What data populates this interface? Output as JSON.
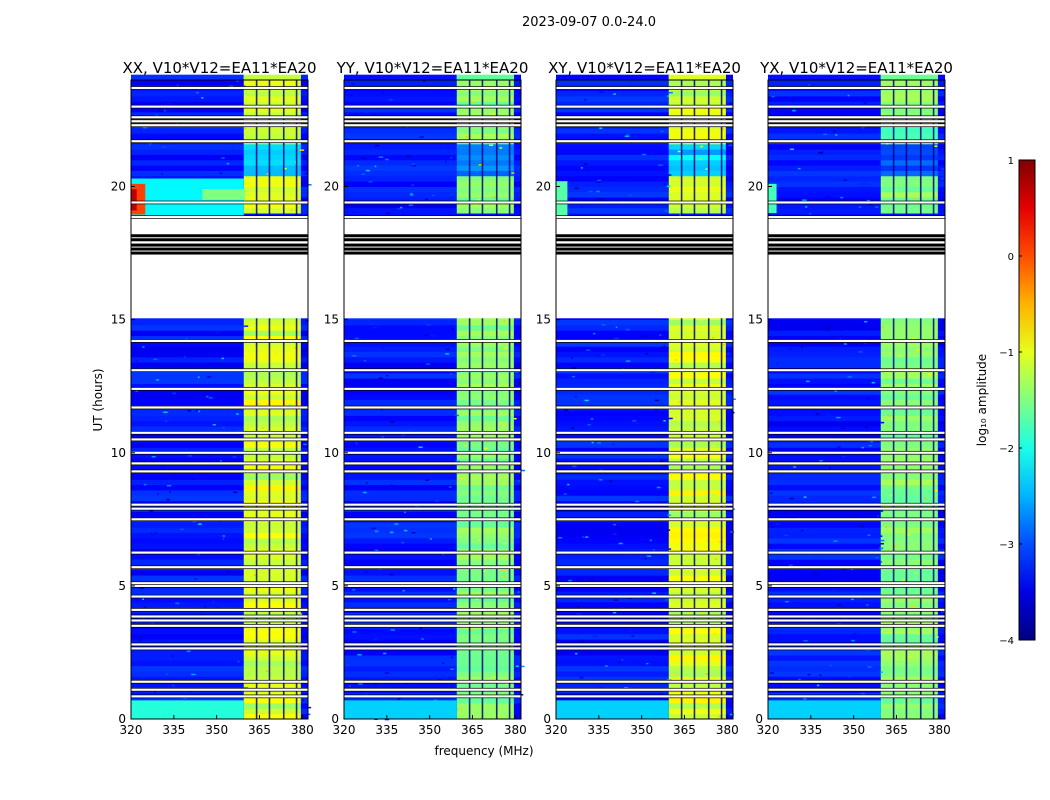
{
  "chart_data": {
    "type": "heatmap",
    "suptitle": "2023-09-07 0.0-24.0",
    "xlabel": "frequency (MHz)",
    "ylabel": "UT (hours)",
    "xlim": [
      320,
      382
    ],
    "ylim": [
      0,
      24
    ],
    "x_ticks": [
      320,
      335,
      350,
      365,
      380
    ],
    "x_tick_labels": [
      "320",
      "335",
      "350",
      "365",
      "380"
    ],
    "y_ticks": [
      0,
      5,
      10,
      15,
      20
    ],
    "y_tick_labels": [
      "0",
      "5",
      "10",
      "15",
      "20"
    ],
    "panels": [
      {
        "title": "XX, V10*V12=EA11*EA20",
        "variant": "xx"
      },
      {
        "title": "YY, V10*V12=EA11*EA20",
        "variant": "yy"
      },
      {
        "title": "XY, V10*V12=EA11*EA20",
        "variant": "xy"
      },
      {
        "title": "YX, V10*V12=EA11*EA20",
        "variant": "yx"
      }
    ],
    "rfi_band_mhz": [
      359.5,
      379.5
    ],
    "rfi_band_dividers_mhz": [
      364,
      368.5,
      373.5,
      378
    ],
    "no_data_hours": [
      [
        15.05,
        18.8
      ]
    ],
    "flagged_rows_hours": [
      0.85,
      1.1,
      1.4,
      2.65,
      2.8,
      3.5,
      3.7,
      3.85,
      4.1,
      4.6,
      5.0,
      5.1,
      5.7,
      6.25,
      7.5,
      7.9,
      8.05,
      9.3,
      9.6,
      10.0,
      10.5,
      10.75,
      11.7,
      12.4,
      13.1,
      14.2,
      18.85,
      19.4,
      21.7,
      22.3,
      22.45,
      22.6,
      23.0,
      23.7
    ],
    "colorbar": {
      "label": "log₁₀ amplitude",
      "range": [
        -4,
        1
      ],
      "ticks": [
        1,
        0,
        -1,
        -2,
        -3,
        -4
      ],
      "tick_labels": [
        "1",
        "0",
        "−1",
        "−2",
        "−3",
        "−4"
      ],
      "colormap": "jet"
    }
  }
}
